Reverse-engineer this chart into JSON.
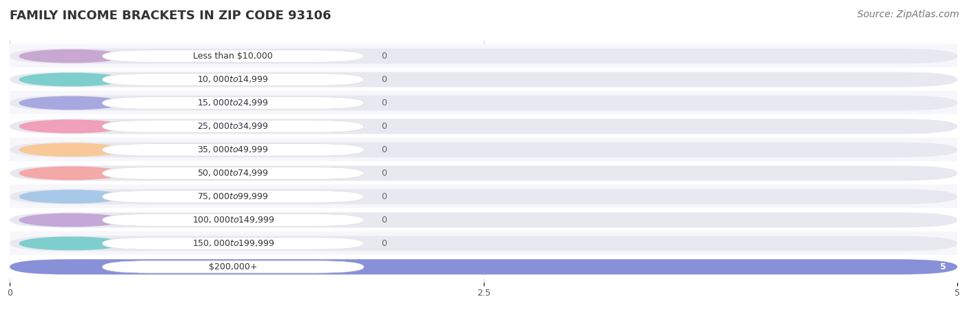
{
  "title": "FAMILY INCOME BRACKETS IN ZIP CODE 93106",
  "source": "Source: ZipAtlas.com",
  "categories": [
    "Less than $10,000",
    "$10,000 to $14,999",
    "$15,000 to $24,999",
    "$25,000 to $34,999",
    "$35,000 to $49,999",
    "$50,000 to $74,999",
    "$75,000 to $99,999",
    "$100,000 to $149,999",
    "$150,000 to $199,999",
    "$200,000+"
  ],
  "values": [
    0,
    0,
    0,
    0,
    0,
    0,
    0,
    0,
    0,
    5
  ],
  "bar_colors": [
    "#c8a8d0",
    "#7ecece",
    "#a8a8e0",
    "#f0a0b8",
    "#f8c898",
    "#f4a8a8",
    "#a8c8e8",
    "#c4a8d8",
    "#7ecece",
    "#8890d8"
  ],
  "label_bg_color": "#ffffff",
  "bg_bar_color": "#e8e8f0",
  "value_label_color": "#666666",
  "xlim": [
    0,
    5
  ],
  "xticks": [
    0,
    2.5,
    5
  ],
  "background_color": "#ffffff",
  "title_fontsize": 13,
  "source_fontsize": 10,
  "bar_height": 0.65,
  "label_fontsize": 9,
  "value_fontsize": 9
}
